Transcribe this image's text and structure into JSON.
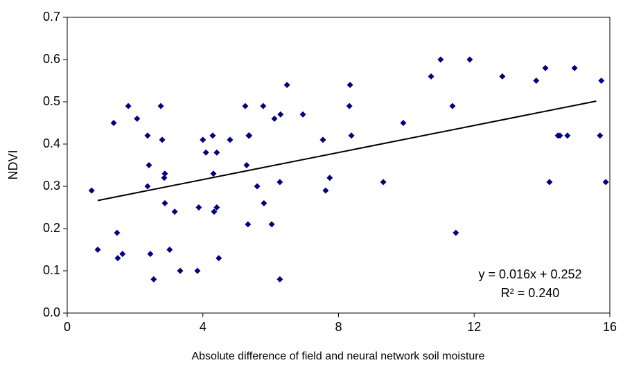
{
  "chart_data": {
    "type": "scatter",
    "x_label": "Absolute difference of field and neural network soil moisture",
    "y_label": "NDVI",
    "xlim": [
      0,
      16
    ],
    "xticks": [
      0,
      4,
      8,
      12,
      16
    ],
    "ylim": [
      0,
      0.7
    ],
    "yticks": [
      {
        "value": 0,
        "label": "0.0"
      },
      {
        "value": 0.1,
        "label": "0.1"
      },
      {
        "value": 0.2,
        "label": "0.2"
      },
      {
        "value": 0.3,
        "label": "0.3"
      },
      {
        "value": 0.4,
        "label": "0.4"
      },
      {
        "value": 0.5,
        "label": "0.5"
      },
      {
        "value": 0.6,
        "label": "0.6"
      },
      {
        "value": 0.7,
        "label": "0.7"
      }
    ],
    "color": "#00007f",
    "x": [
      0.9,
      0.72,
      1.37,
      1.47,
      1.49,
      1.63,
      1.8,
      2.06,
      2.37,
      2.41,
      2.37,
      2.45,
      2.55,
      2.76,
      2.8,
      2.88,
      2.86,
      2.88,
      3.02,
      3.17,
      3.33,
      3.84,
      3.88,
      4.0,
      4.09,
      4.29,
      4.31,
      4.41,
      4.33,
      4.41,
      4.47,
      4.8,
      5.25,
      5.29,
      5.35,
      5.37,
      5.33,
      5.6,
      5.78,
      5.8,
      6.03,
      6.11,
      6.29,
      6.27,
      6.48,
      6.27,
      6.95,
      7.54,
      7.62,
      7.74,
      8.34,
      8.38,
      8.32,
      9.32,
      9.91,
      10.73,
      11.01,
      11.36,
      11.46,
      11.87,
      12.83,
      13.83,
      14.1,
      14.22,
      14.47,
      14.53,
      14.75,
      14.96,
      15.71,
      15.75,
      15.88
    ],
    "values": [
      0.15,
      0.29,
      0.45,
      0.19,
      0.13,
      0.14,
      0.49,
      0.46,
      0.42,
      0.35,
      0.3,
      0.14,
      0.08,
      0.49,
      0.41,
      0.33,
      0.32,
      0.26,
      0.15,
      0.24,
      0.1,
      0.1,
      0.25,
      0.41,
      0.38,
      0.42,
      0.33,
      0.38,
      0.24,
      0.25,
      0.13,
      0.41,
      0.49,
      0.35,
      0.42,
      0.42,
      0.21,
      0.3,
      0.49,
      0.26,
      0.21,
      0.46,
      0.47,
      0.08,
      0.54,
      0.31,
      0.47,
      0.41,
      0.29,
      0.32,
      0.54,
      0.42,
      0.49,
      0.31,
      0.45,
      0.56,
      0.6,
      0.49,
      0.19,
      0.6,
      0.56,
      0.55,
      0.58,
      0.31,
      0.42,
      0.42,
      0.42,
      0.58,
      0.42,
      0.55,
      0.31
    ],
    "trendline": {
      "slope": 0.016,
      "intercept": 0.252,
      "x": [
        0.9,
        15.6
      ]
    },
    "annotations": [
      "y = 0.016x + 0.252",
      "R² = 0.240"
    ]
  }
}
